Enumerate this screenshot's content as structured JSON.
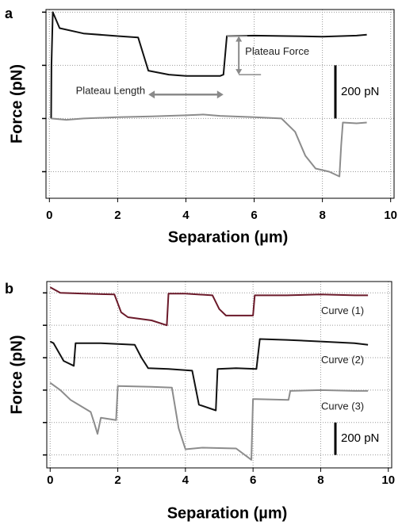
{
  "chart_data": [
    {
      "type": "line",
      "panel_label": "a",
      "x_label": "Separation (µm)",
      "y_label": "Force (pN)",
      "xlim": [
        -0.1,
        10.1
      ],
      "xticks": [
        0,
        2,
        4,
        6,
        8,
        10
      ],
      "ylim": [
        -100,
        610
      ],
      "yticks": [
        0,
        200,
        400,
        600
      ],
      "grid": true,
      "series": [
        {
          "color": "#111111",
          "x": [
            0.05,
            0.06,
            0.1,
            0.3,
            1,
            2,
            2.6,
            2.9,
            3.5,
            4,
            5,
            5.1,
            5.2,
            6,
            7,
            8,
            9,
            9.3
          ],
          "values": [
            200,
            400,
            600,
            540,
            520,
            510,
            505,
            380,
            365,
            360,
            360,
            365,
            510,
            512,
            510,
            508,
            512,
            515
          ]
        },
        {
          "color": "#8c8c8c",
          "x": [
            0.05,
            0.5,
            1,
            2,
            3,
            4,
            4.5,
            5,
            6,
            6.8,
            7.2,
            7.5,
            7.8,
            8.2,
            8.5,
            8.55,
            8.6,
            9,
            9.3
          ],
          "values": [
            200,
            195,
            200,
            205,
            208,
            212,
            215,
            210,
            205,
            200,
            150,
            60,
            12,
            0,
            -18,
            100,
            185,
            182,
            185
          ]
        }
      ],
      "annotations": [
        "Plateau Length",
        "Plateau Force"
      ],
      "scale_bar": {
        "value": 200,
        "label": "200 pN"
      }
    },
    {
      "type": "line",
      "panel_label": "b",
      "x_label": "Separation (µm)",
      "y_label": "Force (pN)",
      "xlim": [
        -0.1,
        10.1
      ],
      "xticks": [
        0,
        2,
        4,
        6,
        8,
        10
      ],
      "ylim": [
        -80,
        1070
      ],
      "yticks": [
        0,
        200,
        400,
        600,
        800,
        1000
      ],
      "grid": true,
      "series": [
        {
          "name": "Curve (1)",
          "color": "#6b1a2a",
          "x": [
            0,
            0.3,
            1,
            1.9,
            2.1,
            2.3,
            3,
            3.45,
            3.5,
            4,
            4.8,
            5.0,
            5.2,
            6.0,
            6.05,
            7,
            8,
            9,
            9.4
          ],
          "values": [
            1035,
            1000,
            995,
            990,
            880,
            850,
            830,
            800,
            995,
            995,
            985,
            900,
            860,
            860,
            985,
            985,
            990,
            985,
            985
          ]
        },
        {
          "name": "Curve (2)",
          "color": "#111111",
          "x": [
            0,
            0.1,
            0.4,
            0.7,
            0.75,
            1.5,
            2.5,
            2.7,
            2.9,
            3.5,
            4.2,
            4.4,
            4.9,
            4.95,
            5.5,
            6.1,
            6.2,
            7,
            8,
            9,
            9.4
          ],
          "values": [
            700,
            690,
            580,
            550,
            690,
            690,
            680,
            600,
            535,
            530,
            520,
            310,
            275,
            530,
            535,
            530,
            715,
            710,
            700,
            690,
            680
          ]
        },
        {
          "name": "Curve (3)",
          "color": "#8c8c8c",
          "x": [
            0,
            0.3,
            0.6,
            1.2,
            1.3,
            1.4,
            1.5,
            1.95,
            2.0,
            3,
            3.6,
            3.8,
            4.0,
            4.5,
            5.5,
            5.95,
            6.0,
            6.1,
            7.05,
            7.1,
            8,
            9,
            9.4
          ],
          "values": [
            445,
            400,
            340,
            265,
            200,
            130,
            230,
            215,
            425,
            420,
            415,
            165,
            35,
            45,
            40,
            -30,
            345,
            345,
            340,
            395,
            400,
            395,
            395
          ]
        }
      ],
      "scale_bar": {
        "value": 200,
        "label": "200 pN"
      }
    }
  ]
}
